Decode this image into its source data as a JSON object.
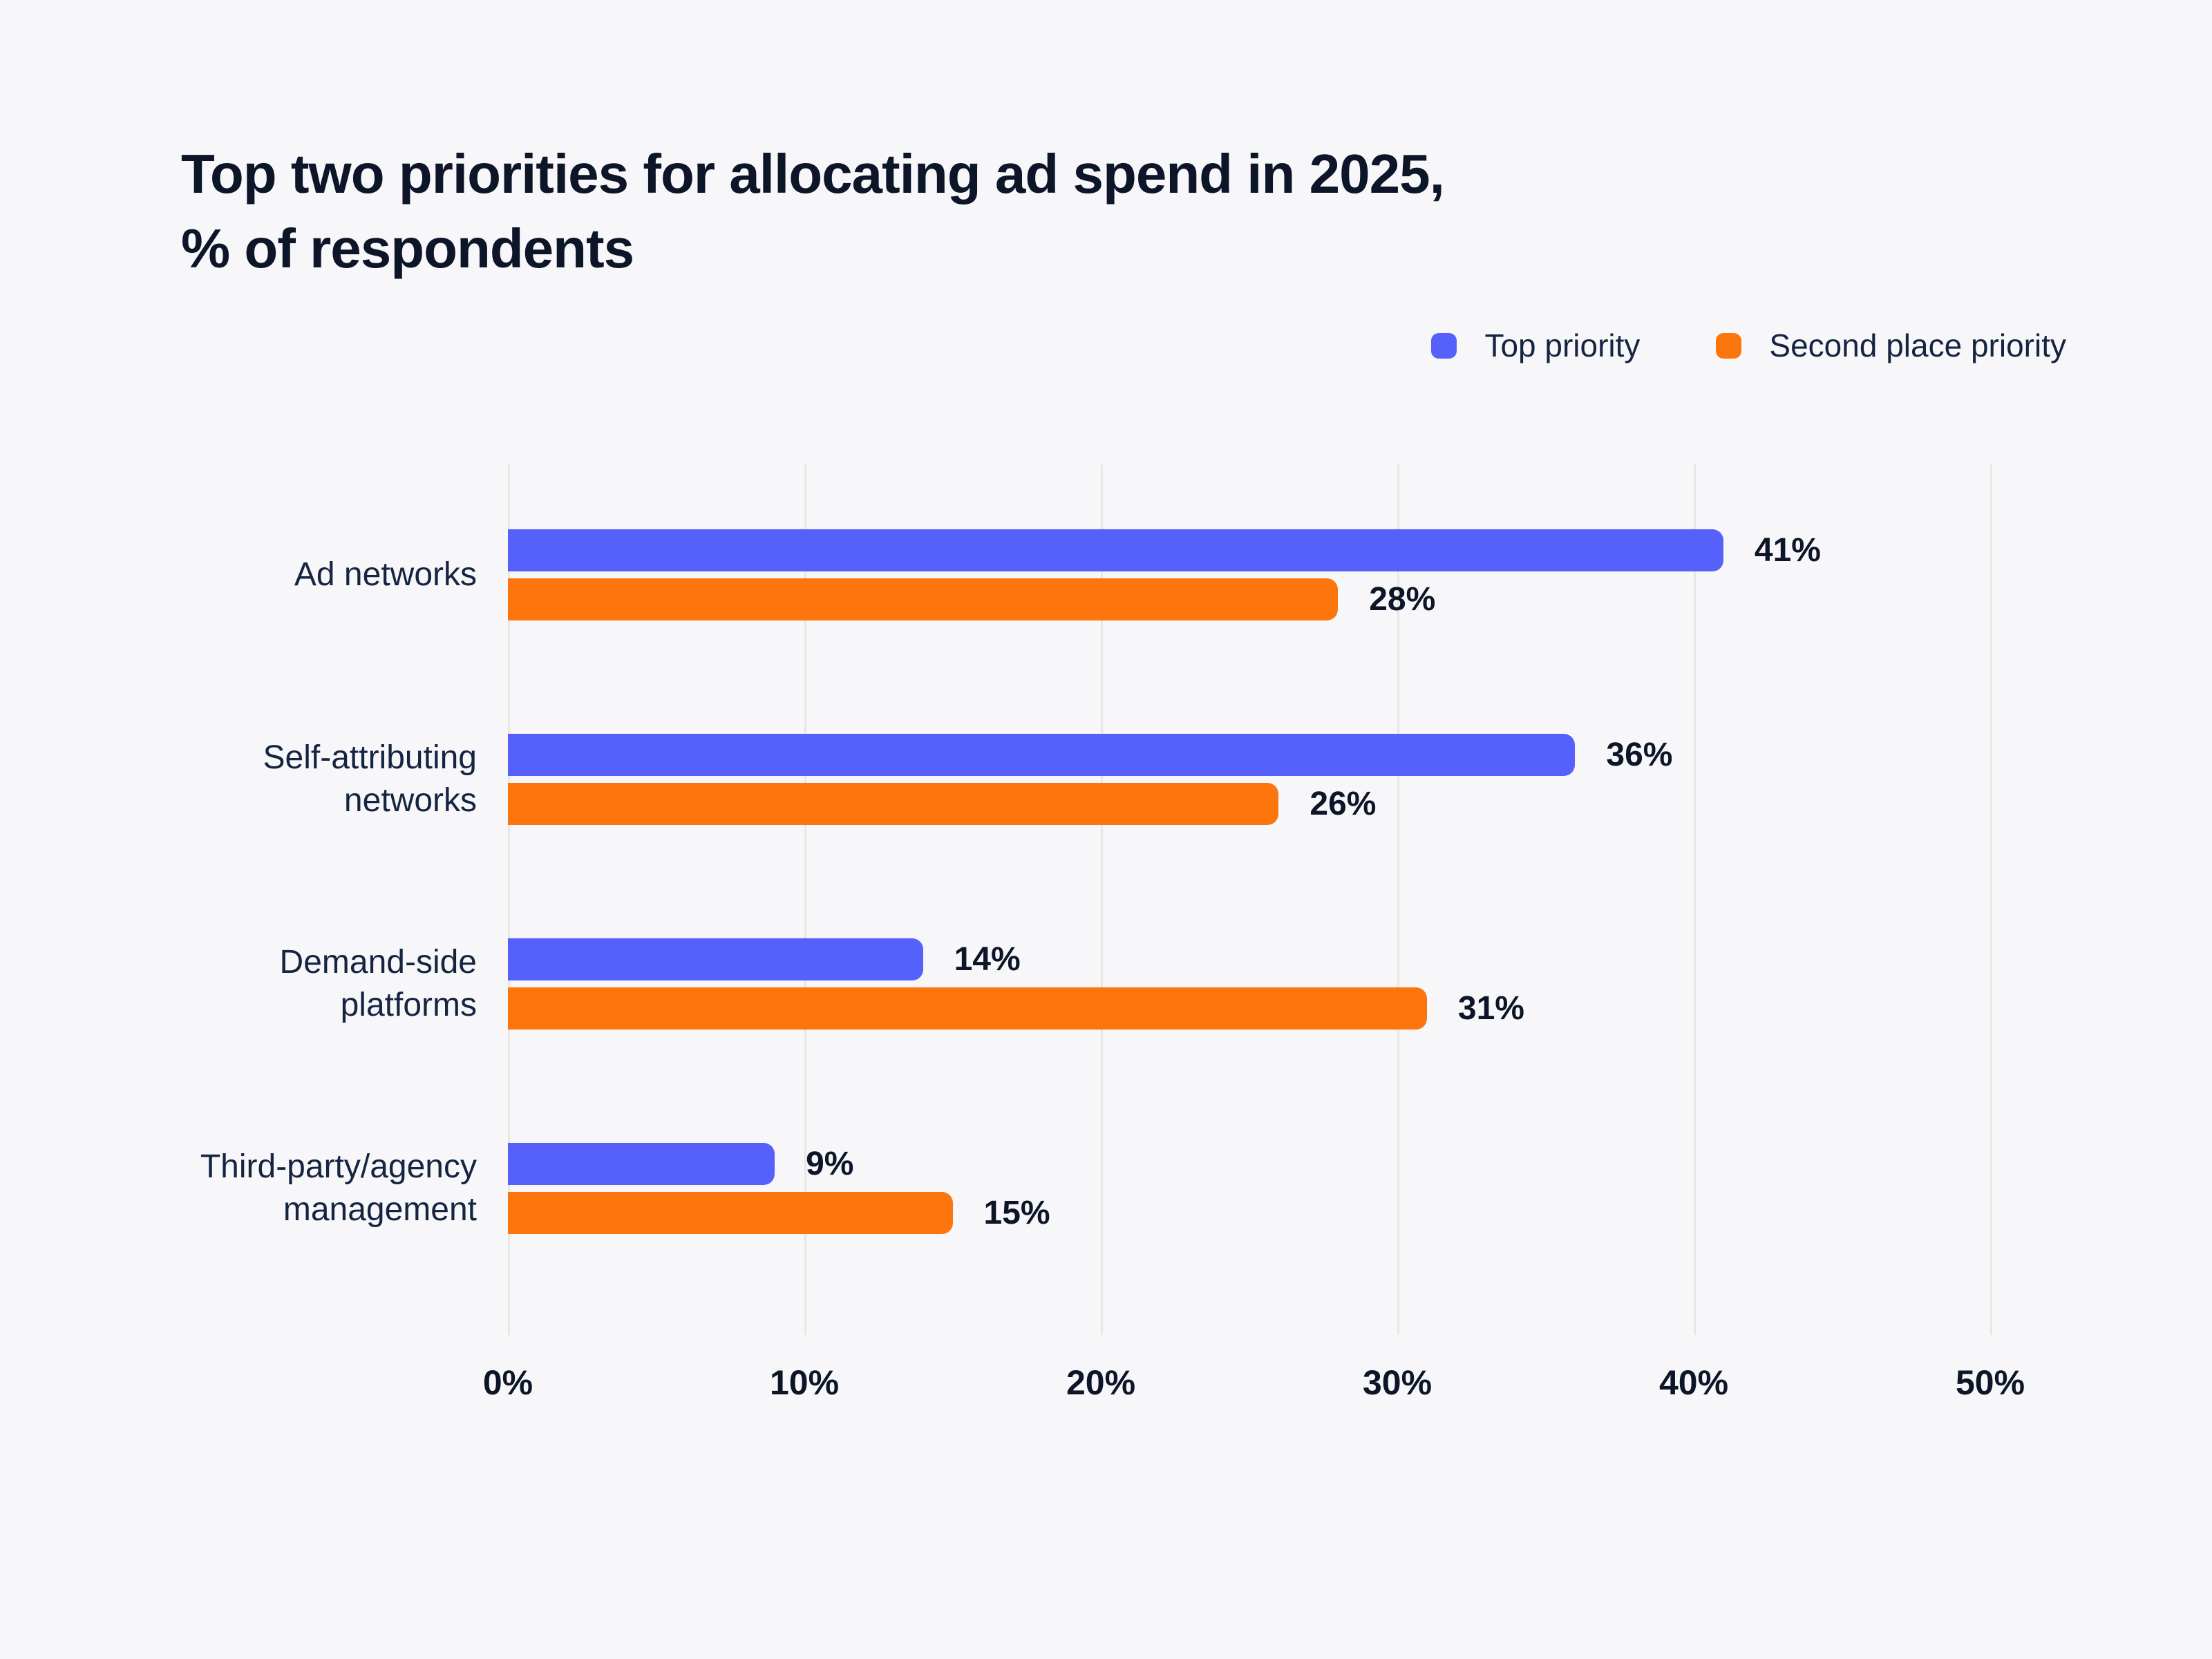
{
  "title": "Top two priorities for allocating ad spend in 2025,\n% of respondents",
  "colors": {
    "top_priority": "#5661FB",
    "second_place_priority": "#FD760D",
    "background": "#F7F7FA",
    "gridline": "#E8E7E0",
    "title_text": "#0D1528",
    "label_text": "#152440"
  },
  "legend": {
    "items": [
      {
        "label": "Top priority",
        "color": "#5661FB"
      },
      {
        "label": "Second place priority",
        "color": "#FD760D"
      }
    ]
  },
  "chart_data": {
    "type": "bar",
    "orientation": "horizontal",
    "title": "Top two priorities for allocating ad spend in 2025, % of respondents",
    "categories": [
      "Ad networks",
      "Self-attributing\nnetworks",
      "Demand-side\nplatforms",
      "Third-party/agency\nmanagement"
    ],
    "series": [
      {
        "name": "Top priority",
        "color": "#5661FB",
        "values": [
          41,
          36,
          14,
          9
        ],
        "display_values": [
          "41%",
          "36%",
          "14%",
          "9%"
        ]
      },
      {
        "name": "Second place priority",
        "color": "#FD760D",
        "values": [
          28,
          26,
          31,
          15
        ],
        "display_values": [
          "28%",
          "26%",
          "31%",
          "15%"
        ]
      }
    ],
    "xlim": [
      0,
      50
    ],
    "x_ticks": [
      "0%",
      "10%",
      "20%",
      "30%",
      "40%",
      "50%"
    ],
    "grid": "vertical",
    "legend_position": "top-right",
    "value_labels": "outside-end"
  }
}
